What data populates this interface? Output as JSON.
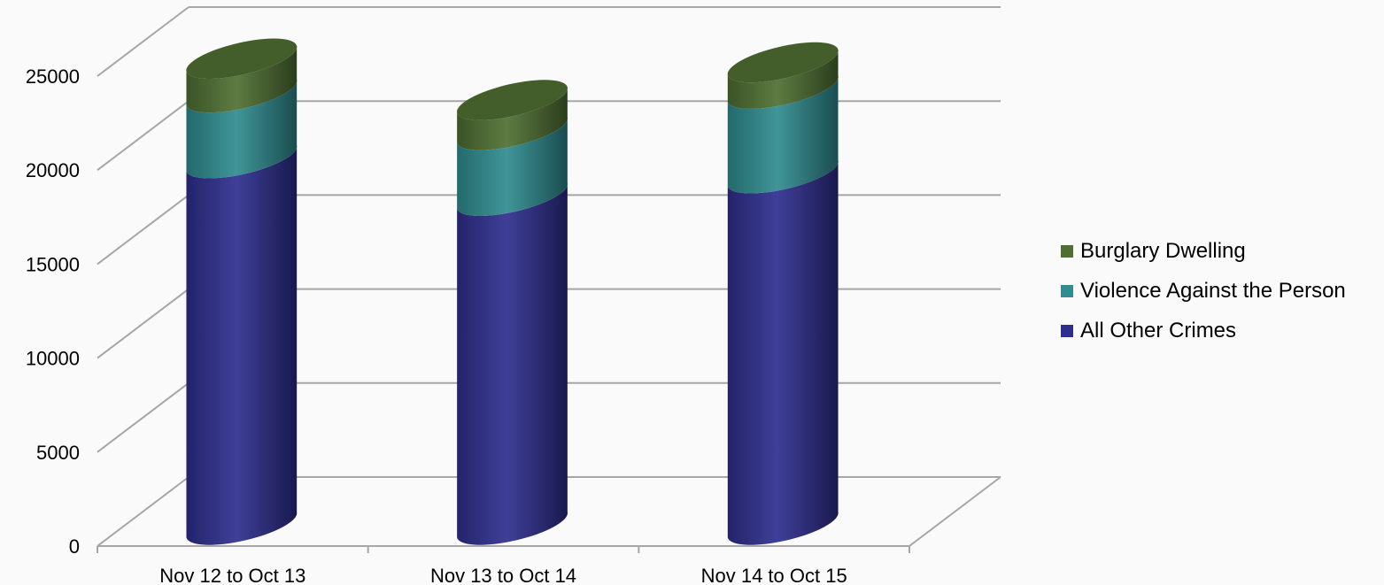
{
  "chart_data": {
    "type": "bar",
    "stacked": true,
    "style": "3d-cylinder",
    "categories": [
      "Nov 12 to Oct 13",
      "Nov 13 to Oct 14",
      "Nov 14 to Oct 15"
    ],
    "series": [
      {
        "name": "All Other Crimes",
        "color": "#2e2e8f",
        "values": [
          19500,
          17500,
          18700
        ]
      },
      {
        "name": "Violence Against the Person",
        "color": "#2f8c8f",
        "values": [
          3500,
          3500,
          4500
        ]
      },
      {
        "name": "Burglary Dwelling",
        "color": "#4f6f32",
        "values": [
          1800,
          1600,
          1400
        ]
      }
    ],
    "yticks": [
      0,
      5000,
      10000,
      15000,
      20000,
      25000
    ],
    "ylim": [
      0,
      25000
    ],
    "grid": true,
    "legend_position": "right",
    "title": "",
    "xlabel": "",
    "ylabel": ""
  }
}
